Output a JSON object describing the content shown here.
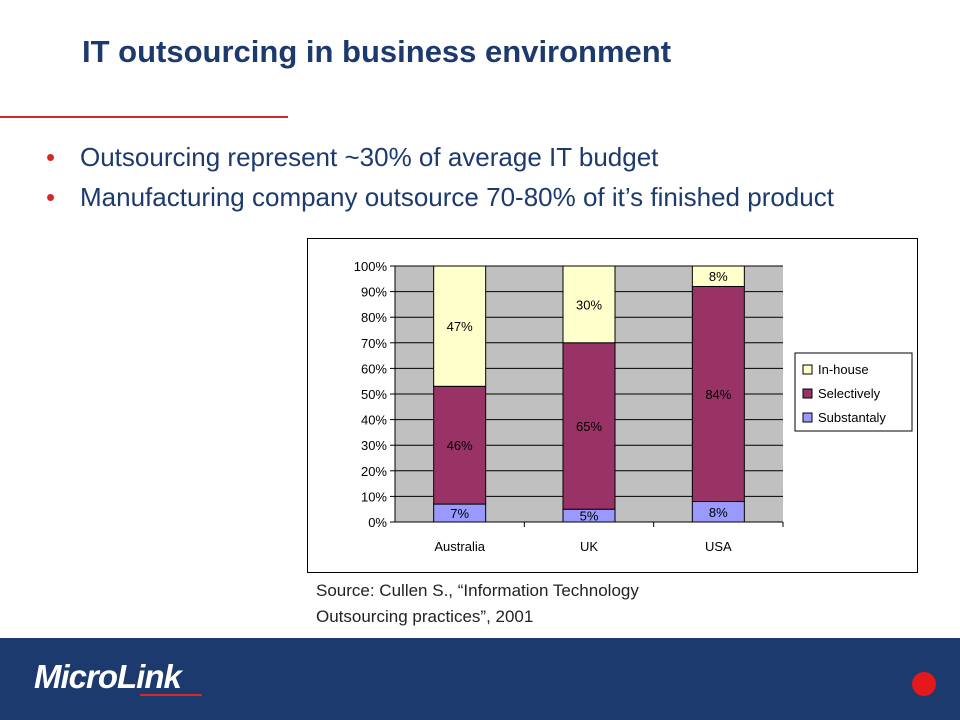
{
  "slide": {
    "title": "IT outsourcing in business environment",
    "bullets": [
      "Outsourcing represent ~30% of average IT budget",
      "Manufacturing company outsource 70-80% of it’s finished product"
    ],
    "source_line1": "Source: Cullen S., “Information Technology",
    "source_line2": "Outsourcing practices”, 2001"
  },
  "footer": {
    "logo_text": "MicroLink",
    "accent_color": "#e3191b",
    "background_color": "#1c3a6e"
  },
  "chart_data": {
    "type": "bar",
    "stacked": true,
    "percent_stacked": true,
    "categories": [
      "Australia",
      "UK",
      "USA"
    ],
    "series": [
      {
        "name": "Substantaly",
        "values": [
          7,
          5,
          8
        ],
        "labels": [
          "7%",
          "5%",
          "8%"
        ],
        "color": "#9999ff"
      },
      {
        "name": "Selectively",
        "values": [
          46,
          65,
          84
        ],
        "labels": [
          "46%",
          "65%",
          "84%"
        ],
        "color": "#993366"
      },
      {
        "name": "In-house",
        "values": [
          47,
          30,
          8
        ],
        "labels": [
          "47%",
          "30%",
          "8%"
        ],
        "color": "#ffffcc"
      }
    ],
    "y_ticks": [
      "0%",
      "10%",
      "20%",
      "30%",
      "40%",
      "50%",
      "60%",
      "70%",
      "80%",
      "90%",
      "100%"
    ],
    "ylim": [
      0,
      100
    ],
    "plot_background": "#c0c0c0",
    "legend_position": "right",
    "legend_order": [
      "In-house",
      "Selectively",
      "Substantaly"
    ]
  }
}
